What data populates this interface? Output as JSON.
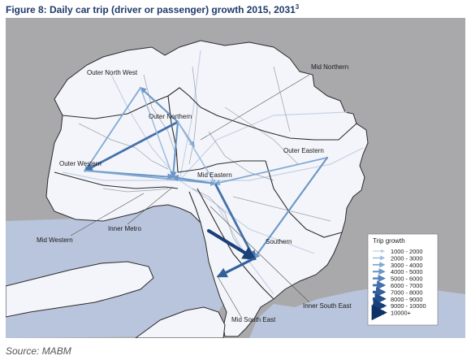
{
  "figure": {
    "title": "Figure 8: Daily car trip (driver or passenger) growth 2015, 2031",
    "title_superscript": "3",
    "source": "Source: MABM"
  },
  "map": {
    "colors": {
      "background": "#a9a9ab",
      "land": "#f3f5fa",
      "water": "#b9c5dc",
      "boundary": "#2b2b2b",
      "subboundary": "#9aa0aa",
      "road": "#c6d1e6"
    },
    "regions": [
      {
        "id": "outer-north-west",
        "label": "Outer North West"
      },
      {
        "id": "outer-northern",
        "label": "Outer Northern"
      },
      {
        "id": "mid-northern",
        "label": "Mid Northern"
      },
      {
        "id": "outer-western",
        "label": "Outer Western"
      },
      {
        "id": "outer-eastern",
        "label": "Outer Eastern"
      },
      {
        "id": "mid-eastern",
        "label": "Mid Eastern"
      },
      {
        "id": "inner-metro",
        "label": "Inner Metro"
      },
      {
        "id": "mid-western",
        "label": "Mid Western"
      },
      {
        "id": "southern",
        "label": "Southern"
      },
      {
        "id": "inner-south-east",
        "label": "Inner South East"
      },
      {
        "id": "mid-south-east",
        "label": "Mid South East"
      }
    ],
    "flows": [
      {
        "from": "outer-northern",
        "to": "outer-north-west",
        "class": 4
      },
      {
        "from": "outer-north-west",
        "to": "outer-western",
        "class": 3
      },
      {
        "from": "outer-northern",
        "to": "outer-western",
        "class": 6
      },
      {
        "from": "outer-north-west",
        "to": "inner-metro",
        "class": 2
      },
      {
        "from": "outer-northern",
        "to": "inner-metro",
        "class": 4
      },
      {
        "from": "outer-northern",
        "to": "mid-northern",
        "class": 3
      },
      {
        "from": "outer-western",
        "to": "inner-metro",
        "class": 4
      },
      {
        "from": "outer-western",
        "to": "mid-eastern",
        "class": 3
      },
      {
        "from": "outer-eastern",
        "to": "mid-eastern",
        "class": 3
      },
      {
        "from": "outer-eastern",
        "to": "southern",
        "class": 4
      },
      {
        "from": "mid-eastern",
        "to": "inner-metro",
        "class": 4
      },
      {
        "from": "mid-eastern",
        "to": "southern",
        "class": 6
      },
      {
        "from": "inner-south-east",
        "to": "southern",
        "class": 9
      },
      {
        "from": "southern",
        "to": "mid-south-east",
        "class": 7
      },
      {
        "from": "outer-northern",
        "to": "mid-eastern",
        "class": 2
      }
    ],
    "legend": {
      "title": "Trip growth",
      "items": [
        {
          "label": "1000 - 2000",
          "color": "#b9cfe6"
        },
        {
          "label": "2000 - 3000",
          "color": "#9dbbdc"
        },
        {
          "label": "3000 - 4000",
          "color": "#82a8d2"
        },
        {
          "label": "4000 - 5000",
          "color": "#6b96c6"
        },
        {
          "label": "5000 - 6000",
          "color": "#5784ba"
        },
        {
          "label": "6000 - 7000",
          "color": "#4471ab"
        },
        {
          "label": "7000 - 8000",
          "color": "#335f9b"
        },
        {
          "label": "8000 - 9000",
          "color": "#254f8a"
        },
        {
          "label": "9000 - 10000",
          "color": "#194079"
        },
        {
          "label": "10000+",
          "color": "#0e3168"
        }
      ]
    }
  }
}
